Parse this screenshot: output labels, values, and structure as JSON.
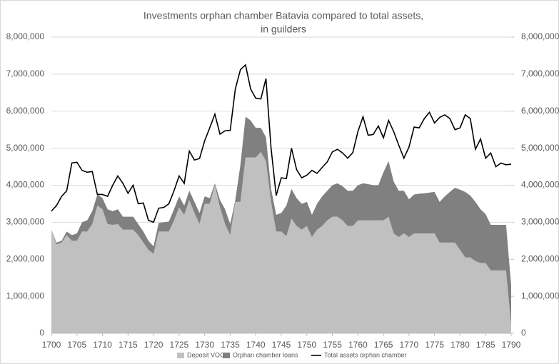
{
  "chart_data": {
    "type": "stacked-area-line",
    "title": [
      "Investments orphan chamber Batavia compared to total assets,",
      "in guilders"
    ],
    "x": [
      1700,
      1701,
      1702,
      1703,
      1704,
      1705,
      1706,
      1707,
      1708,
      1709,
      1710,
      1711,
      1712,
      1713,
      1714,
      1715,
      1716,
      1717,
      1718,
      1719,
      1720,
      1721,
      1722,
      1723,
      1724,
      1725,
      1726,
      1727,
      1728,
      1729,
      1730,
      1731,
      1732,
      1733,
      1734,
      1735,
      1736,
      1737,
      1738,
      1739,
      1740,
      1741,
      1742,
      1743,
      1744,
      1745,
      1746,
      1747,
      1748,
      1749,
      1750,
      1751,
      1752,
      1753,
      1754,
      1755,
      1756,
      1757,
      1758,
      1759,
      1760,
      1761,
      1762,
      1763,
      1764,
      1765,
      1766,
      1767,
      1768,
      1769,
      1770,
      1771,
      1772,
      1773,
      1774,
      1775,
      1776,
      1777,
      1778,
      1779,
      1780,
      1781,
      1782,
      1783,
      1784,
      1785,
      1786,
      1787,
      1788,
      1789,
      1790
    ],
    "series": [
      {
        "name": "Deposit VOC",
        "color": "#c0c0c0",
        "kind": "area",
        "values": [
          2800000,
          2400000,
          2450000,
          2650000,
          2500000,
          2500000,
          2750000,
          2750000,
          2950000,
          3450000,
          3350000,
          2950000,
          2930000,
          2950000,
          2800000,
          2800000,
          2800000,
          2650000,
          2450000,
          2250000,
          2150000,
          2750000,
          2750000,
          2750000,
          3050000,
          3400000,
          3200000,
          3600000,
          3250000,
          2950000,
          3500000,
          3500000,
          4000000,
          3400000,
          2950000,
          2650000,
          3550000,
          3550000,
          4750000,
          4750000,
          4750000,
          4900000,
          4650000,
          3550000,
          2750000,
          2750000,
          2620000,
          3100000,
          2900000,
          2800000,
          2900000,
          2600000,
          2800000,
          2900000,
          3050000,
          3150000,
          3150000,
          3050000,
          2900000,
          2900000,
          3050000,
          3050000,
          3050000,
          3050000,
          3050000,
          3050000,
          3150000,
          2700000,
          2600000,
          2700000,
          2600000,
          2700000,
          2700000,
          2700000,
          2700000,
          2700000,
          2450000,
          2450000,
          2450000,
          2450000,
          2250000,
          2050000,
          2050000,
          1950000,
          1900000,
          1900000,
          1700000,
          1700000,
          1700000,
          1700000,
          200000
        ]
      },
      {
        "name": "Orphan chamber loans",
        "color": "#808080",
        "kind": "area",
        "values": [
          0,
          50000,
          50000,
          100000,
          150000,
          200000,
          250000,
          300000,
          350000,
          300000,
          300000,
          400000,
          370000,
          400000,
          350000,
          350000,
          350000,
          300000,
          300000,
          250000,
          200000,
          230000,
          250000,
          270000,
          300000,
          300000,
          250000,
          250000,
          300000,
          300000,
          200000,
          150000,
          50000,
          200000,
          400000,
          300000,
          50000,
          1000000,
          1100000,
          1000000,
          800000,
          650000,
          650000,
          350000,
          450000,
          500000,
          830000,
          800000,
          750000,
          700000,
          650000,
          600000,
          700000,
          800000,
          800000,
          850000,
          900000,
          920000,
          950000,
          950000,
          950000,
          1000000,
          980000,
          950000,
          950000,
          1300000,
          1500000,
          1400000,
          1250000,
          1150000,
          1020000,
          1050000,
          1070000,
          1080000,
          1100000,
          1120000,
          1100000,
          1250000,
          1370000,
          1480000,
          1630000,
          1770000,
          1670000,
          1600000,
          1450000,
          1320000,
          1230000,
          1230000,
          1230000,
          1230000,
          1100000
        ]
      },
      {
        "name": "Total assets orphan chamber",
        "color": "#000000",
        "kind": "line",
        "values": [
          3300000,
          3450000,
          3700000,
          3850000,
          4600000,
          4620000,
          4400000,
          4350000,
          4370000,
          3750000,
          3750000,
          3700000,
          4000000,
          4250000,
          4050000,
          3780000,
          4000000,
          3500000,
          3520000,
          3050000,
          3000000,
          3380000,
          3400000,
          3500000,
          3850000,
          4250000,
          4050000,
          4920000,
          4680000,
          4720000,
          5200000,
          5550000,
          5920000,
          5380000,
          5470000,
          5480000,
          6600000,
          7120000,
          7250000,
          6600000,
          6350000,
          6330000,
          6880000,
          5000000,
          3720000,
          4200000,
          4180000,
          5000000,
          4420000,
          4200000,
          4270000,
          4400000,
          4320000,
          4480000,
          4630000,
          4900000,
          4970000,
          4870000,
          4730000,
          4880000,
          5450000,
          5850000,
          5350000,
          5370000,
          5600000,
          5280000,
          5750000,
          5450000,
          5080000,
          4730000,
          5030000,
          5570000,
          5550000,
          5800000,
          5970000,
          5680000,
          5830000,
          5900000,
          5800000,
          5500000,
          5550000,
          5900000,
          5800000,
          4970000,
          5250000,
          4730000,
          4870000,
          4500000,
          4600000,
          4550000,
          4570000
        ]
      }
    ],
    "xlim": [
      1700,
      1790
    ],
    "xticks": [
      1700,
      1705,
      1710,
      1715,
      1720,
      1725,
      1730,
      1735,
      1740,
      1745,
      1750,
      1755,
      1760,
      1765,
      1770,
      1775,
      1780,
      1785,
      1790
    ],
    "ylim": [
      0,
      8000000
    ],
    "yticks": [
      0,
      {
        "value": 1000000,
        "label": "1,000,000"
      },
      {
        "value": 2000000,
        "label": "2,000,000"
      },
      {
        "value": 3000000,
        "label": "3,000,000"
      },
      {
        "value": 4000000,
        "label": "4,000,000"
      },
      {
        "value": 5000000,
        "label": "5,000,000"
      },
      {
        "value": 6000000,
        "label": "6,000,000"
      },
      {
        "value": 7000000,
        "label": "7,000,000"
      },
      {
        "value": 8000000,
        "label": "8,000,000"
      }
    ],
    "y2lim": [
      0,
      8000000
    ],
    "y2ticks": [
      0,
      {
        "value": 1000000,
        "label": "1,000,000"
      },
      {
        "value": 2000000,
        "label": "2,000,000"
      },
      {
        "value": 3000000,
        "label": "3,000,000"
      },
      {
        "value": 4000000,
        "label": "4,000,000"
      },
      {
        "value": 5000000,
        "label": "5,000,000"
      },
      {
        "value": 6000000,
        "label": "6,000,000"
      },
      {
        "value": 7000000,
        "label": "7,000,000"
      },
      {
        "value": 8000000,
        "label": "8,000,000"
      }
    ],
    "grid": true,
    "legend": "bottom"
  }
}
